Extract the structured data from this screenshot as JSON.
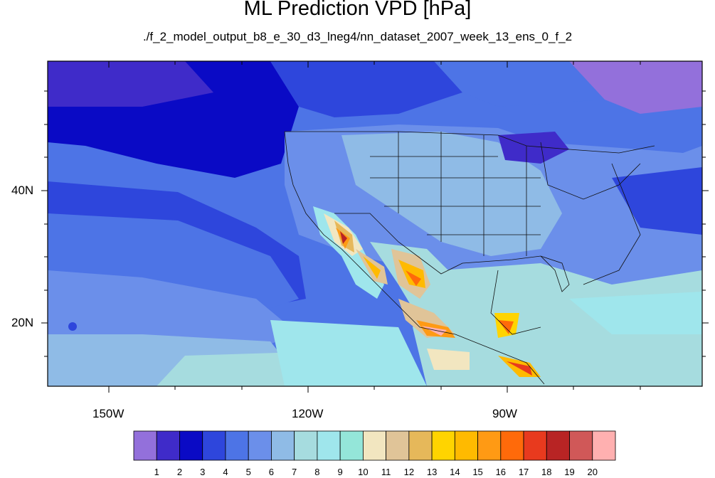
{
  "title": "ML Prediction VPD [hPa]",
  "subtitle": "./f_2_model_output_b8_e_30_d3_lneg4/nn_dataset_2007_week_13_ens_0_f_2",
  "lat_labels": [
    "40N",
    "20N"
  ],
  "lon_labels": [
    "150W",
    "120W",
    "90W"
  ],
  "colorbar": {
    "colors": [
      "#9370db",
      "#3f2bc9",
      "#0a0ac5",
      "#2e46dc",
      "#4d74e6",
      "#6b8fea",
      "#8fbbe6",
      "#a6dcdf",
      "#9fe6ec",
      "#94e6d9",
      "#f2e6c0",
      "#e0c498",
      "#e6b85a",
      "#ffd400",
      "#ffba00",
      "#ff9a14",
      "#ff6a0a",
      "#e83a1e",
      "#b82424",
      "#d05858",
      "#ffb0b0"
    ],
    "labels": [
      "1",
      "2",
      "3",
      "4",
      "5",
      "6",
      "7",
      "8",
      "9",
      "10",
      "11",
      "12",
      "13",
      "14",
      "15",
      "16",
      "17",
      "18",
      "19",
      "20"
    ]
  }
}
